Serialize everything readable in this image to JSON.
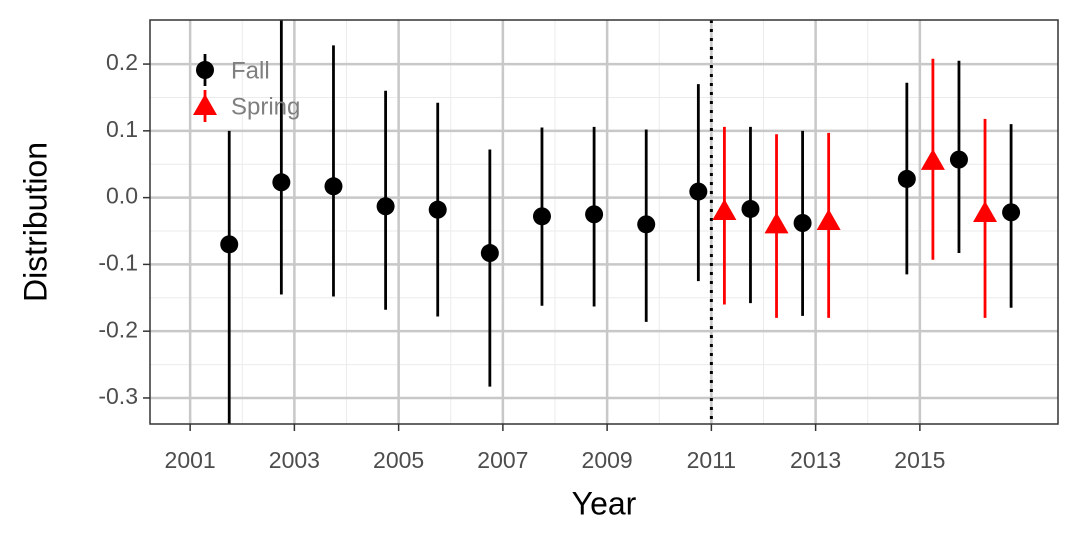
{
  "chart_data": {
    "type": "errorbar",
    "x_label": "Year",
    "y_label": "Distribution",
    "xlim": [
      2000.23,
      2017.65
    ],
    "ylim": [
      -0.339,
      0.266
    ],
    "xticks": [
      2001,
      2003,
      2005,
      2007,
      2009,
      2011,
      2013,
      2015
    ],
    "yticks": [
      0.2,
      0.1,
      {
        "value": 0,
        "label": "0.0"
      },
      -0.1,
      -0.2,
      -0.3
    ],
    "grid": true,
    "legend": "top-left",
    "vline": 2011,
    "series": [
      {
        "name": "Fall",
        "color": "#000000",
        "marker": "circle",
        "x": [
          2001.75,
          2002.75,
          2003.75,
          2004.75,
          2005.75,
          2006.75,
          2007.75,
          2008.75,
          2009.75,
          2010.75,
          2011.75,
          2012.75,
          2014.75,
          2015.75,
          2016.75
        ],
        "values": [
          -0.07,
          0.023,
          0.017,
          -0.013,
          -0.018,
          -0.083,
          -0.028,
          -0.025,
          -0.04,
          0.009,
          -0.017,
          -0.038,
          0.028,
          0.057,
          -0.022
        ],
        "lower": [
          -0.34,
          -0.145,
          -0.148,
          -0.168,
          -0.178,
          -0.283,
          -0.162,
          -0.163,
          -0.186,
          -0.125,
          -0.158,
          -0.177,
          -0.115,
          -0.083,
          -0.165
        ],
        "upper": [
          0.1,
          0.27,
          0.228,
          0.16,
          0.142,
          0.072,
          0.105,
          0.106,
          0.102,
          0.17,
          0.106,
          0.1,
          0.172,
          0.205,
          0.11
        ]
      },
      {
        "name": "Spring",
        "color": "#ff0000",
        "marker": "triangle",
        "x": [
          2011.25,
          2012.25,
          2013.25,
          2015.25,
          2016.25
        ],
        "values": [
          -0.02,
          -0.04,
          -0.035,
          0.055,
          -0.023
        ],
        "lower": [
          -0.16,
          -0.18,
          -0.18,
          -0.093,
          -0.18
        ],
        "upper": [
          0.106,
          0.095,
          0.097,
          0.208,
          0.118
        ]
      }
    ]
  }
}
